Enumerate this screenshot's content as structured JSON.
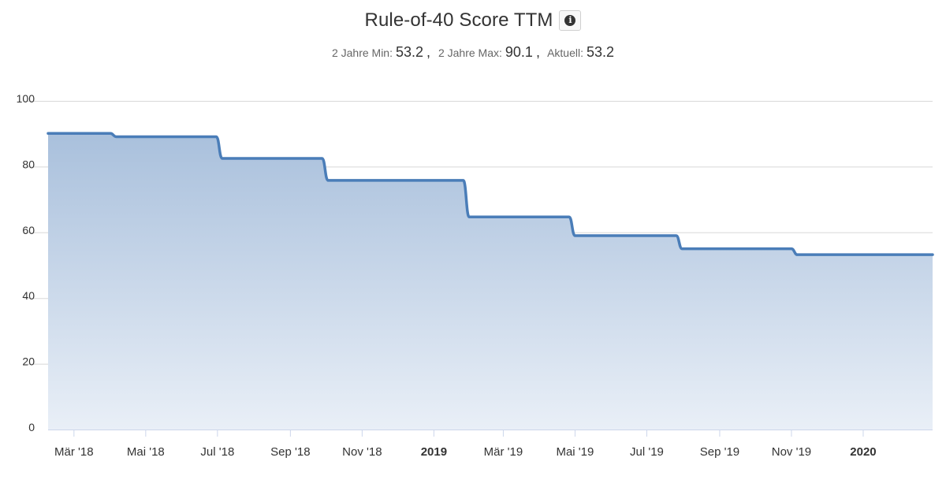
{
  "header": {
    "title": "Rule-of-40 Score TTM",
    "info_icon": "info-circle-icon",
    "stats": [
      {
        "label": "2 Jahre Min:",
        "value": "53.2",
        "suffix": ","
      },
      {
        "label": "2 Jahre Max:",
        "value": "90.1",
        "suffix": ","
      },
      {
        "label": "Aktuell:",
        "value": "53.2",
        "suffix": ""
      }
    ]
  },
  "colors": {
    "line": "#4a7db8",
    "area_top": "#a9c0dc",
    "area_bottom": "#e9eff7",
    "grid": "#d8d8d8"
  },
  "chart_data": {
    "type": "area",
    "title": "Rule-of-40 Score TTM",
    "xlabel": "",
    "ylabel": "",
    "ylim": [
      0,
      100
    ],
    "yticks": [
      0,
      20,
      40,
      60,
      80,
      100
    ],
    "xlim": [
      "2018-02-07",
      "2020-02-29"
    ],
    "xticks": [
      {
        "date": "2018-03-01",
        "label": "Mär '18",
        "bold": false
      },
      {
        "date": "2018-05-01",
        "label": "Mai '18",
        "bold": false
      },
      {
        "date": "2018-07-01",
        "label": "Jul '18",
        "bold": false
      },
      {
        "date": "2018-09-01",
        "label": "Sep '18",
        "bold": false
      },
      {
        "date": "2018-11-01",
        "label": "Nov '18",
        "bold": false
      },
      {
        "date": "2019-01-01",
        "label": "2019",
        "bold": true
      },
      {
        "date": "2019-03-01",
        "label": "Mär '19",
        "bold": false
      },
      {
        "date": "2019-05-01",
        "label": "Mai '19",
        "bold": false
      },
      {
        "date": "2019-07-01",
        "label": "Jul '19",
        "bold": false
      },
      {
        "date": "2019-09-01",
        "label": "Sep '19",
        "bold": false
      },
      {
        "date": "2019-11-01",
        "label": "Nov '19",
        "bold": false
      },
      {
        "date": "2020-01-01",
        "label": "2020",
        "bold": true
      }
    ],
    "grid": true,
    "legend": "none",
    "series": [
      {
        "points": [
          {
            "x": "2018-02-07",
            "y": 90.1
          },
          {
            "x": "2018-04-01",
            "y": 90.1
          },
          {
            "x": "2018-04-06",
            "y": 89.1
          },
          {
            "x": "2018-06-30",
            "y": 89.1
          },
          {
            "x": "2018-07-05",
            "y": 82.5
          },
          {
            "x": "2018-09-28",
            "y": 82.5
          },
          {
            "x": "2018-10-03",
            "y": 75.8
          },
          {
            "x": "2019-01-26",
            "y": 75.8
          },
          {
            "x": "2019-01-31",
            "y": 64.7
          },
          {
            "x": "2019-04-26",
            "y": 64.7
          },
          {
            "x": "2019-05-01",
            "y": 59.0
          },
          {
            "x": "2019-07-26",
            "y": 59.0
          },
          {
            "x": "2019-07-31",
            "y": 55.0
          },
          {
            "x": "2019-11-01",
            "y": 55.0
          },
          {
            "x": "2019-11-06",
            "y": 53.2
          },
          {
            "x": "2020-02-29",
            "y": 53.2
          }
        ]
      }
    ]
  }
}
